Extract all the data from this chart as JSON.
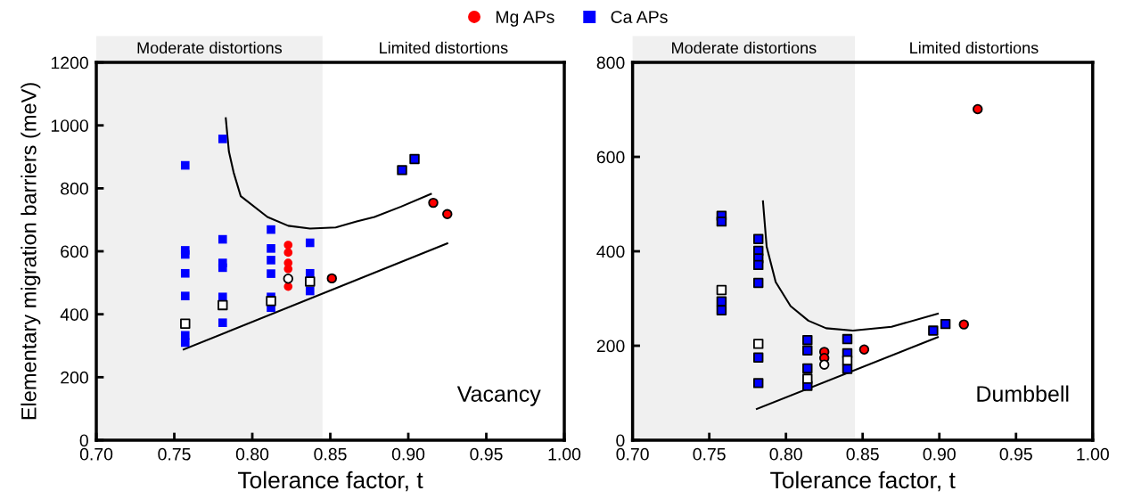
{
  "chart_data": [
    {
      "type": "scatter",
      "ylabel": "Elementary migration barriers (meV)",
      "xlabel": "Tolerance factor, t",
      "xlim": [
        0.7,
        1.0
      ],
      "xticks": [
        {
          "value": 0.7,
          "label": "0.70"
        },
        {
          "value": 0.75,
          "label": "0.75"
        },
        {
          "value": 0.8,
          "label": "0.80"
        },
        {
          "value": 0.85,
          "label": "0.85"
        },
        {
          "value": 0.9,
          "label": "0.90"
        },
        {
          "value": 0.95,
          "label": "0.95"
        },
        {
          "value": 1.0,
          "label": "1.00"
        }
      ],
      "ylim": [
        0,
        1200
      ],
      "yticks": [
        0,
        200,
        400,
        600,
        800,
        1000,
        1200
      ],
      "grid": false,
      "legend": "top",
      "bands": [
        {
          "axis": "x",
          "from": 0.7,
          "to": 0.845,
          "label": "Moderate distortions",
          "color": "#f0f0f0"
        }
      ],
      "annotations": [
        "Limited distortions",
        "Vacancy"
      ],
      "series": [
        {
          "type": "line",
          "color": "#000000",
          "marker": "none",
          "x": [
            0.783,
            0.785,
            0.788,
            0.7926,
            0.8097,
            0.823,
            0.837,
            0.8535,
            0.8669,
            0.8783,
            0.8954,
            0.9145
          ],
          "values": [
            1023,
            917,
            851,
            775,
            709,
            681,
            672,
            676,
            695,
            709,
            742,
            782
          ]
        },
        {
          "type": "line",
          "color": "#000000",
          "marker": "none",
          "x": [
            0.756,
            0.925
          ],
          "values": [
            288,
            625
          ]
        },
        {
          "name": "Mg APs",
          "color": "#ff0000",
          "marker": "circle",
          "x": [
            0.823,
            0.823,
            0.823,
            0.823,
            0.823
          ],
          "values": [
            620,
            596,
            563,
            544,
            488
          ]
        },
        {
          "name": "Ca APs",
          "color": "#0000ff",
          "marker": "square",
          "x": [
            0.757,
            0.757,
            0.757,
            0.757,
            0.757,
            0.757,
            0.757,
            0.781,
            0.781,
            0.781,
            0.781,
            0.781,
            0.781,
            0.812,
            0.812,
            0.812,
            0.812,
            0.812,
            0.812,
            0.837,
            0.837,
            0.837
          ],
          "values": [
            873,
            603,
            590,
            530,
            458,
            333,
            310,
            957,
            638,
            563,
            548,
            455,
            373,
            669,
            609,
            572,
            529,
            455,
            421,
            627,
            530,
            474
          ]
        },
        {
          "color": "#ffffff",
          "marker": "square",
          "x": [
            0.757,
            0.781,
            0.812,
            0.837
          ],
          "values": [
            370,
            429,
            442,
            504
          ]
        },
        {
          "color": "#ffffff",
          "marker": "circle",
          "x": [
            0.823
          ],
          "values": [
            513
          ]
        },
        {
          "color": "#ff0000",
          "marker": "circle",
          "x": [
            0.851,
            0.916,
            0.925
          ],
          "values": [
            514,
            754,
            718
          ]
        },
        {
          "color": "#0000ff",
          "marker": "square",
          "x": [
            0.896,
            0.904
          ],
          "values": [
            858,
            893
          ]
        }
      ]
    },
    {
      "type": "scatter",
      "xlabel": "Tolerance factor, t",
      "xlim": [
        0.7,
        1.0
      ],
      "xticks": [
        {
          "value": 0.7,
          "label": "0.70"
        },
        {
          "value": 0.75,
          "label": "0.75"
        },
        {
          "value": 0.8,
          "label": "0.80"
        },
        {
          "value": 0.85,
          "label": "0.85"
        },
        {
          "value": 0.9,
          "label": "0.90"
        },
        {
          "value": 0.95,
          "label": "0.95"
        },
        {
          "value": 1.0,
          "label": "1.00"
        }
      ],
      "ylim": [
        0,
        800
      ],
      "yticks": [
        0,
        200,
        400,
        600,
        800
      ],
      "grid": false,
      "bands": [
        {
          "axis": "x",
          "from": 0.7,
          "to": 0.845,
          "label": "Moderate distortions",
          "color": "#f0f0f0"
        }
      ],
      "annotations": [
        "Limited distortions",
        "Dumbbell"
      ],
      "series": [
        {
          "type": "line",
          "color": "#000000",
          "marker": "none",
          "x": [
            0.785,
            0.7874,
            0.7933,
            0.803,
            0.8146,
            0.8262,
            0.8437,
            0.8688,
            0.899
          ],
          "values": [
            506,
            410,
            335,
            284,
            253,
            237,
            232,
            240,
            268
          ]
        },
        {
          "type": "line",
          "color": "#000000",
          "marker": "none",
          "x": [
            0.781,
            0.899
          ],
          "values": [
            66,
            218
          ]
        },
        {
          "color": "#ff0000",
          "marker": "circle",
          "x": [
            0.825,
            0.825
          ],
          "values": [
            187,
            174
          ]
        },
        {
          "color": "#0000ff",
          "marker": "square",
          "x": [
            0.758,
            0.758,
            0.758,
            0.758,
            0.782,
            0.782,
            0.782,
            0.782,
            0.782,
            0.782,
            0.782,
            0.814,
            0.814,
            0.814,
            0.814,
            0.84,
            0.84,
            0.84
          ],
          "values": [
            475,
            463,
            294,
            275,
            426,
            401,
            385,
            371,
            333,
            175,
            121,
            212,
            190,
            152,
            115,
            214,
            184,
            151
          ]
        },
        {
          "color": "#ffffff",
          "marker": "square",
          "x": [
            0.758,
            0.782,
            0.814,
            0.84
          ],
          "values": [
            318,
            204,
            130,
            169
          ]
        },
        {
          "color": "#ffffff",
          "marker": "circle",
          "x": [
            0.825
          ],
          "values": [
            160
          ]
        },
        {
          "color": "#ff0000",
          "marker": "circle",
          "x": [
            0.851,
            0.916,
            0.925
          ],
          "values": [
            192,
            245,
            701
          ]
        },
        {
          "color": "#0000ff",
          "marker": "square",
          "x": [
            0.896,
            0.904
          ],
          "values": [
            232,
            246
          ]
        }
      ]
    }
  ]
}
